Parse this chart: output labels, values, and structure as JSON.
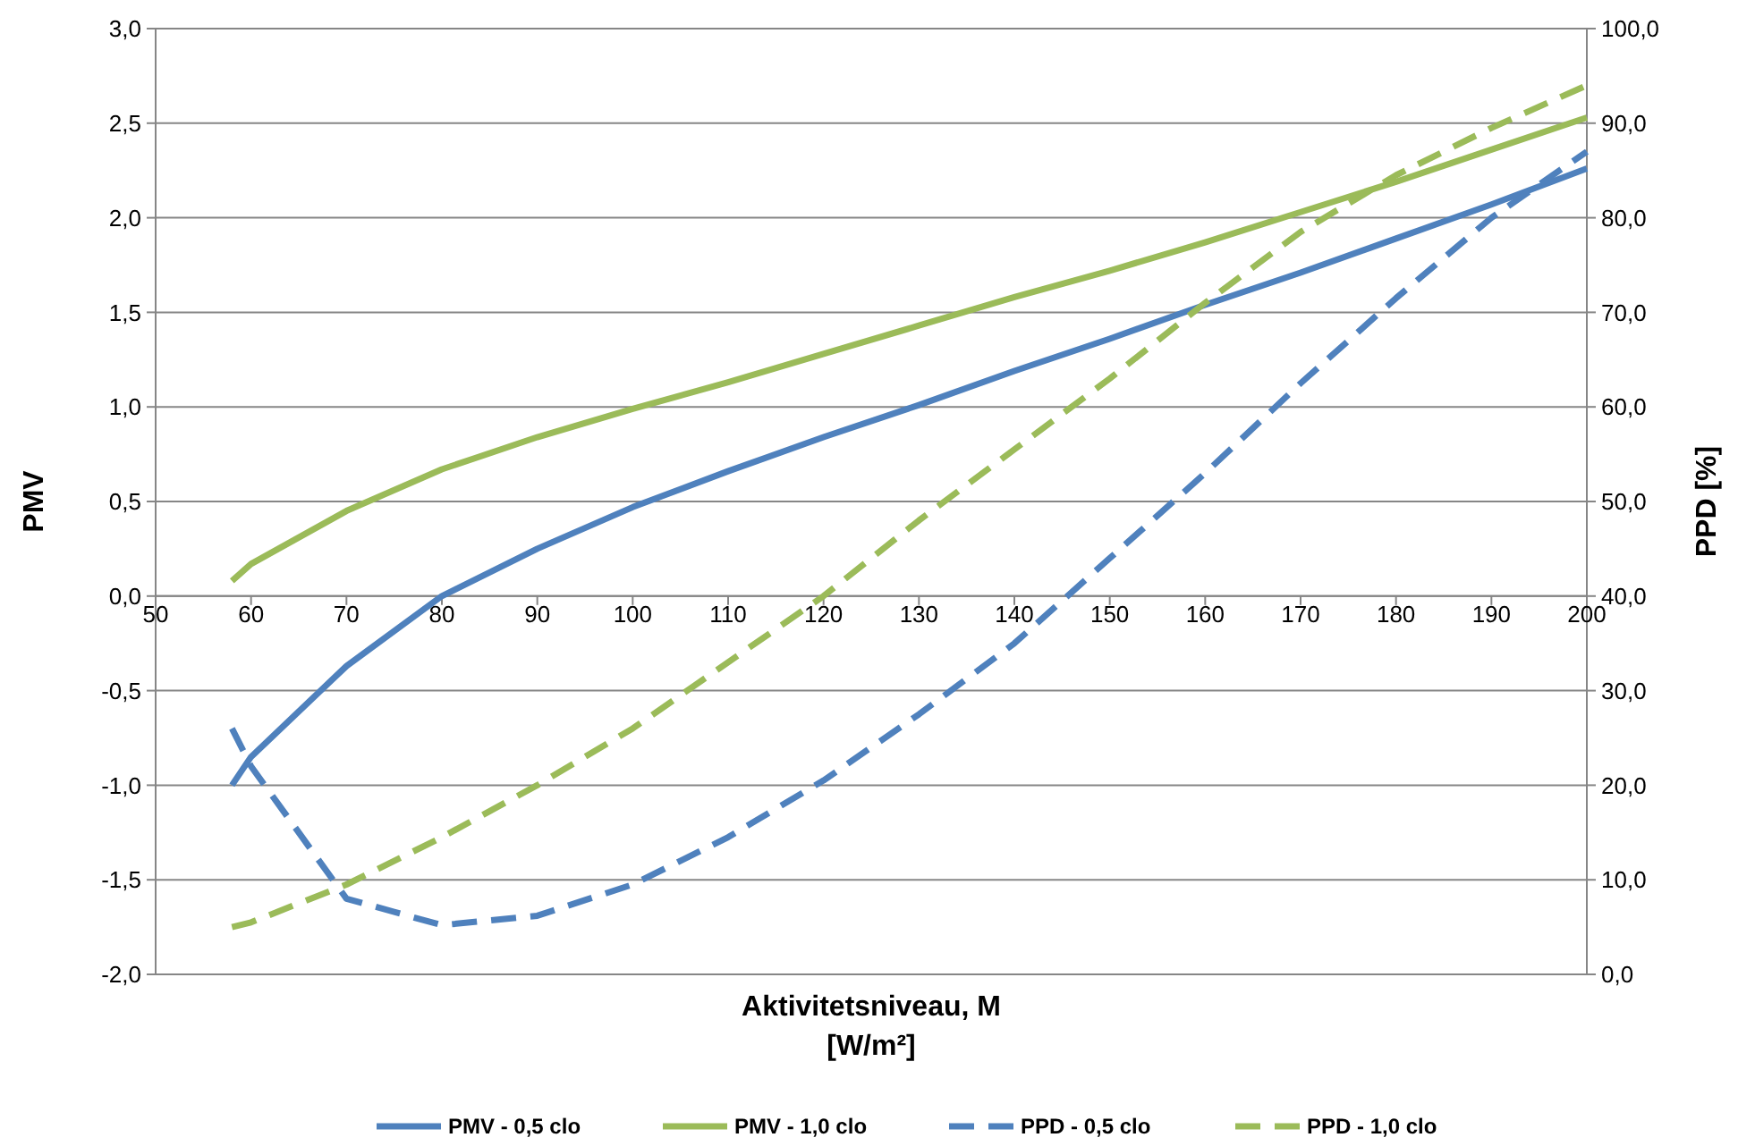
{
  "chart_data": {
    "type": "line",
    "xlabel": "Aktivitetsniveau, M\n[W/m²]",
    "ylabel": "PMV",
    "y2label": "PPD [%]",
    "x": [
      58,
      60,
      70,
      80,
      90,
      100,
      110,
      120,
      130,
      140,
      150,
      160,
      170,
      180,
      190,
      200
    ],
    "xlim": [
      50,
      200
    ],
    "xticks": [
      50,
      60,
      70,
      80,
      90,
      100,
      110,
      120,
      130,
      140,
      150,
      160,
      170,
      180,
      190,
      200
    ],
    "ylim": [
      -2,
      3
    ],
    "yticks": [
      {
        "value": -2,
        "label": "-2,0"
      },
      {
        "value": -1.5,
        "label": "-1,5"
      },
      {
        "value": -1,
        "label": "-1,0"
      },
      {
        "value": -0.5,
        "label": "-0,5"
      },
      {
        "value": 0,
        "label": "0,0"
      },
      {
        "value": 0.5,
        "label": "0,5"
      },
      {
        "value": 1,
        "label": "1,0"
      },
      {
        "value": 1.5,
        "label": "1,5"
      },
      {
        "value": 2,
        "label": "2,0"
      },
      {
        "value": 2.5,
        "label": "2,5"
      },
      {
        "value": 3,
        "label": "3,0"
      }
    ],
    "y2lim": [
      0,
      100
    ],
    "y2ticks": [
      {
        "value": 0,
        "label": "0,0"
      },
      {
        "value": 10,
        "label": "10,0"
      },
      {
        "value": 20,
        "label": "20,0"
      },
      {
        "value": 30,
        "label": "30,0"
      },
      {
        "value": 40,
        "label": "40,0"
      },
      {
        "value": 50,
        "label": "50,0"
      },
      {
        "value": 60,
        "label": "60,0"
      },
      {
        "value": 70,
        "label": "70,0"
      },
      {
        "value": 80,
        "label": "80,0"
      },
      {
        "value": 90,
        "label": "90,0"
      },
      {
        "value": 100,
        "label": "100,0"
      }
    ],
    "grid": "y",
    "legend": "bottom",
    "marker": "none",
    "series": [
      {
        "name": "PMV - 0,5 clo",
        "color": "#4f81bd",
        "line_style": "solid",
        "values": [
          -1.0,
          -0.85,
          -0.37,
          0.0,
          0.25,
          0.47,
          0.66,
          0.84,
          1.01,
          1.19,
          1.36,
          1.54,
          1.71,
          1.89,
          2.07,
          2.26
        ]
      },
      {
        "name": "PMV - 1,0 clo",
        "color": "#9bbb59",
        "line_style": "solid",
        "values": [
          0.08,
          0.17,
          0.45,
          0.67,
          0.84,
          0.99,
          1.13,
          1.28,
          1.43,
          1.58,
          1.72,
          1.87,
          2.03,
          2.19,
          2.36,
          2.53
        ]
      },
      {
        "name": "PPD - 0,5 clo",
        "color": "#4f81bd",
        "line_style": "dashed",
        "axis": "y2",
        "values": [
          26,
          22,
          8,
          5.2,
          6.2,
          9.5,
          14.5,
          20.5,
          27.5,
          35,
          44,
          53,
          62.5,
          71.5,
          80,
          87
        ]
      },
      {
        "name": "PPD - 1,0 clo",
        "color": "#9bbb59",
        "line_style": "dashed",
        "axis": "y2",
        "values": [
          5,
          5.5,
          9.5,
          14.5,
          20,
          26,
          33,
          40,
          48,
          55.5,
          63,
          71,
          78.5,
          84.5,
          89.5,
          94
        ]
      }
    ]
  }
}
